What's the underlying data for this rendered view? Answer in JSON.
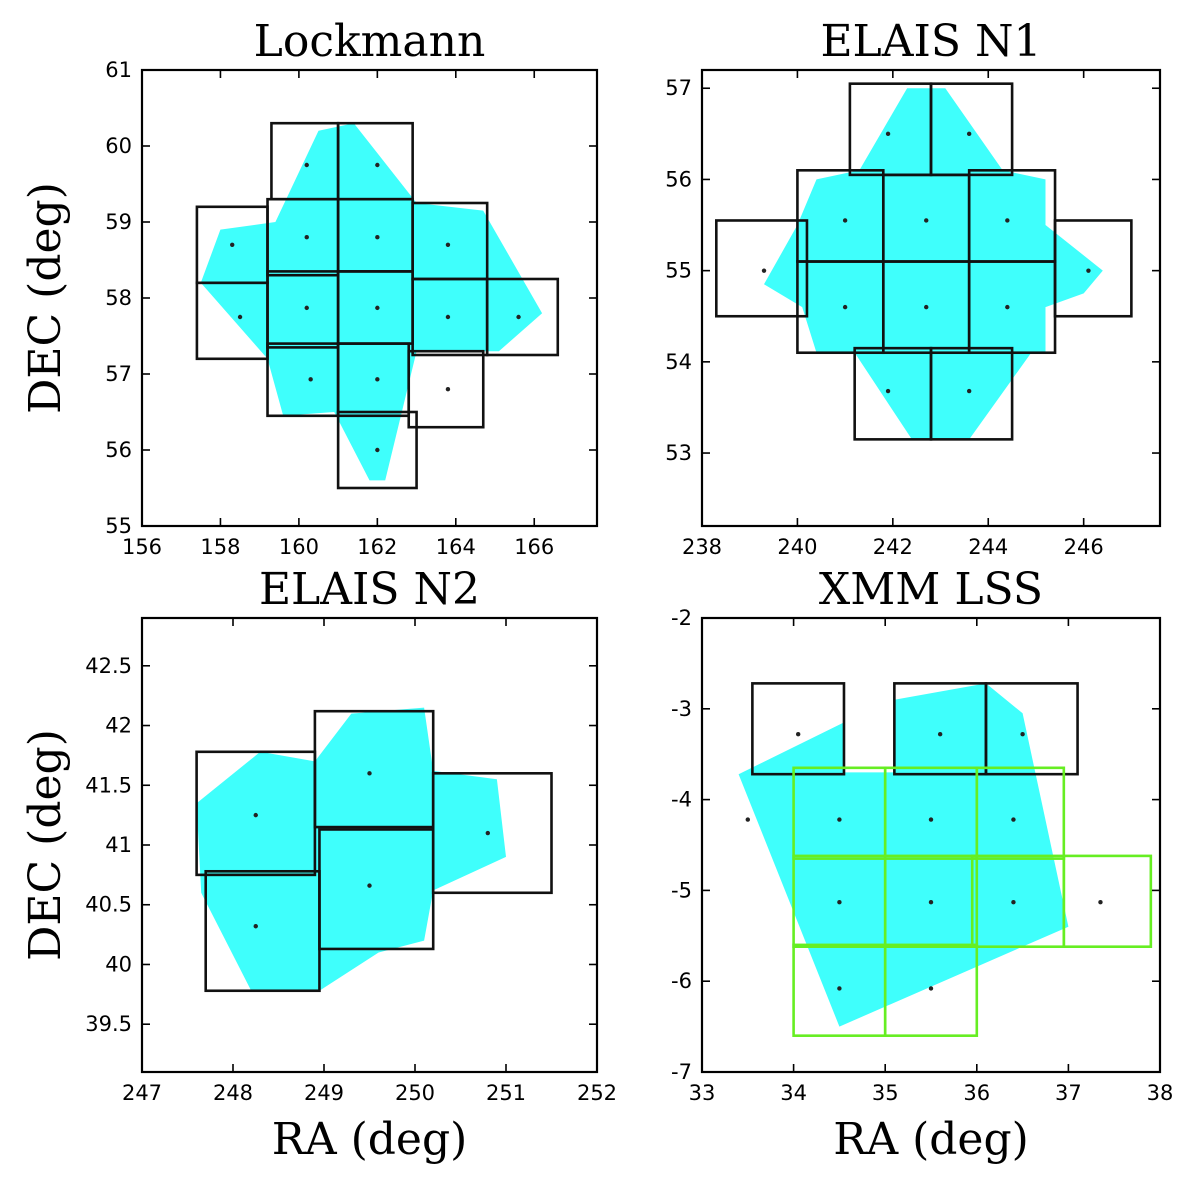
{
  "colors": {
    "coverage": "#3ffffc",
    "box": "#111111",
    "box_alt": "#66ee22",
    "dot": "#222222",
    "frame": "#000000"
  },
  "chart_data": [
    {
      "type": "scatter",
      "title": "Lockmann",
      "xlabel": "",
      "ylabel": "DEC (deg)",
      "xlim": [
        156,
        167.6
      ],
      "ylim": [
        55,
        61
      ],
      "xticks": [
        156,
        158,
        160,
        162,
        164,
        166
      ],
      "yticks": [
        55,
        56,
        57,
        58,
        59,
        60,
        61
      ],
      "coverage_polygon": [
        [
          161.4,
          60.3
        ],
        [
          163.0,
          59.25
        ],
        [
          164.7,
          59.15
        ],
        [
          166.2,
          57.8
        ],
        [
          165.1,
          57.3
        ],
        [
          163.0,
          57.3
        ],
        [
          162.2,
          55.6
        ],
        [
          161.8,
          55.6
        ],
        [
          160.9,
          56.5
        ],
        [
          159.6,
          56.45
        ],
        [
          159.2,
          57.2
        ],
        [
          157.5,
          58.2
        ],
        [
          158.0,
          58.9
        ],
        [
          159.4,
          59.0
        ],
        [
          160.5,
          60.2
        ]
      ],
      "boxes": [
        {
          "ra": [
            159.3,
            161.0
          ],
          "dec": [
            59.3,
            60.3
          ],
          "color": "box"
        },
        {
          "ra": [
            161.0,
            162.9
          ],
          "dec": [
            59.3,
            60.3
          ],
          "color": "box"
        },
        {
          "ra": [
            157.4,
            159.2
          ],
          "dec": [
            58.2,
            59.2
          ],
          "color": "box"
        },
        {
          "ra": [
            159.2,
            161.0
          ],
          "dec": [
            58.3,
            59.3
          ],
          "color": "box"
        },
        {
          "ra": [
            161.0,
            162.9
          ],
          "dec": [
            58.35,
            59.3
          ],
          "color": "box"
        },
        {
          "ra": [
            162.9,
            164.8
          ],
          "dec": [
            58.25,
            59.25
          ],
          "color": "box"
        },
        {
          "ra": [
            157.4,
            159.2
          ],
          "dec": [
            57.2,
            58.2
          ],
          "color": "box"
        },
        {
          "ra": [
            159.2,
            161.0
          ],
          "dec": [
            57.35,
            58.35
          ],
          "color": "box"
        },
        {
          "ra": [
            161.0,
            162.9
          ],
          "dec": [
            57.4,
            58.35
          ],
          "color": "box"
        },
        {
          "ra": [
            162.9,
            164.8
          ],
          "dec": [
            57.25,
            58.25
          ],
          "color": "box"
        },
        {
          "ra": [
            164.8,
            166.6
          ],
          "dec": [
            57.25,
            58.25
          ],
          "color": "box"
        },
        {
          "ra": [
            159.2,
            161.0
          ],
          "dec": [
            56.45,
            57.4
          ],
          "color": "box"
        },
        {
          "ra": [
            161.0,
            162.8
          ],
          "dec": [
            56.45,
            57.4
          ],
          "color": "box"
        },
        {
          "ra": [
            162.8,
            164.7
          ],
          "dec": [
            56.3,
            57.3
          ],
          "color": "box"
        },
        {
          "ra": [
            161.0,
            163.0
          ],
          "dec": [
            55.5,
            56.5
          ],
          "color": "box"
        }
      ],
      "centers": [
        [
          160.2,
          59.75
        ],
        [
          162.0,
          59.75
        ],
        [
          158.3,
          58.7
        ],
        [
          160.2,
          58.8
        ],
        [
          162.0,
          58.8
        ],
        [
          163.8,
          58.7
        ],
        [
          158.5,
          57.75
        ],
        [
          160.2,
          57.87
        ],
        [
          162.0,
          57.87
        ],
        [
          163.8,
          57.75
        ],
        [
          165.6,
          57.75
        ],
        [
          160.3,
          56.93
        ],
        [
          162.0,
          56.93
        ],
        [
          163.8,
          56.8
        ],
        [
          162.0,
          56.0
        ]
      ]
    },
    {
      "type": "scatter",
      "title": "ELAIS N1",
      "xlabel": "",
      "ylabel": "",
      "xlim": [
        238,
        247.6
      ],
      "ylim": [
        52.2,
        57.2
      ],
      "xticks": [
        238,
        240,
        242,
        244,
        246
      ],
      "yticks": [
        53,
        54,
        55,
        56,
        57
      ],
      "coverage_polygon": [
        [
          243.1,
          57.0
        ],
        [
          244.3,
          56.1
        ],
        [
          245.2,
          56.0
        ],
        [
          245.2,
          55.5
        ],
        [
          246.4,
          55.0
        ],
        [
          246.0,
          54.75
        ],
        [
          245.2,
          54.6
        ],
        [
          245.2,
          54.1
        ],
        [
          244.9,
          54.1
        ],
        [
          243.6,
          53.15
        ],
        [
          242.4,
          53.15
        ],
        [
          241.2,
          54.1
        ],
        [
          240.4,
          54.1
        ],
        [
          240.1,
          54.6
        ],
        [
          239.3,
          54.85
        ],
        [
          240.0,
          55.5
        ],
        [
          240.4,
          56.0
        ],
        [
          241.3,
          56.1
        ],
        [
          242.3,
          57.0
        ]
      ],
      "boxes": [
        {
          "ra": [
            241.1,
            242.8
          ],
          "dec": [
            56.05,
            57.05
          ],
          "color": "box"
        },
        {
          "ra": [
            242.8,
            244.5
          ],
          "dec": [
            56.05,
            57.05
          ],
          "color": "box"
        },
        {
          "ra": [
            238.3,
            240.2
          ],
          "dec": [
            54.5,
            55.55
          ],
          "color": "box"
        },
        {
          "ra": [
            240.0,
            241.8
          ],
          "dec": [
            55.1,
            56.1
          ],
          "color": "box"
        },
        {
          "ra": [
            241.8,
            243.6
          ],
          "dec": [
            55.1,
            56.05
          ],
          "color": "box"
        },
        {
          "ra": [
            243.6,
            245.4
          ],
          "dec": [
            55.1,
            56.1
          ],
          "color": "box"
        },
        {
          "ra": [
            245.4,
            247.0
          ],
          "dec": [
            54.5,
            55.55
          ],
          "color": "box"
        },
        {
          "ra": [
            240.0,
            241.8
          ],
          "dec": [
            54.1,
            55.1
          ],
          "color": "box"
        },
        {
          "ra": [
            241.8,
            243.6
          ],
          "dec": [
            54.1,
            55.1
          ],
          "color": "box"
        },
        {
          "ra": [
            243.6,
            245.4
          ],
          "dec": [
            54.1,
            55.1
          ],
          "color": "box"
        },
        {
          "ra": [
            241.2,
            242.8
          ],
          "dec": [
            53.15,
            54.15
          ],
          "color": "box"
        },
        {
          "ra": [
            242.8,
            244.5
          ],
          "dec": [
            53.15,
            54.15
          ],
          "color": "box"
        }
      ],
      "centers": [
        [
          241.9,
          56.5
        ],
        [
          243.6,
          56.5
        ],
        [
          239.3,
          55.0
        ],
        [
          241.0,
          55.55
        ],
        [
          242.7,
          55.55
        ],
        [
          244.4,
          55.55
        ],
        [
          246.1,
          55.0
        ],
        [
          241.0,
          54.6
        ],
        [
          242.7,
          54.6
        ],
        [
          244.4,
          54.6
        ],
        [
          241.9,
          53.68
        ],
        [
          243.6,
          53.68
        ]
      ]
    },
    {
      "type": "scatter",
      "title": "ELAIS N2",
      "xlabel": "RA (deg)",
      "ylabel": "DEC (deg)",
      "xlim": [
        247,
        252
      ],
      "ylim": [
        39.1,
        42.9
      ],
      "xticks": [
        247,
        248,
        249,
        250,
        251,
        252
      ],
      "yticks": [
        39.5,
        40.0,
        40.5,
        41.0,
        41.5,
        42.0,
        42.5
      ],
      "coverage_polygon": [
        [
          250.1,
          42.15
        ],
        [
          250.2,
          41.62
        ],
        [
          250.9,
          41.55
        ],
        [
          251.0,
          40.9
        ],
        [
          250.2,
          40.62
        ],
        [
          250.1,
          40.2
        ],
        [
          249.6,
          40.1
        ],
        [
          248.95,
          39.78
        ],
        [
          248.2,
          39.78
        ],
        [
          247.65,
          40.6
        ],
        [
          247.6,
          41.35
        ],
        [
          248.3,
          41.78
        ],
        [
          248.9,
          41.7
        ],
        [
          249.3,
          42.1
        ]
      ],
      "boxes": [
        {
          "ra": [
            247.6,
            248.9
          ],
          "dec": [
            40.75,
            41.78
          ],
          "color": "box"
        },
        {
          "ra": [
            248.9,
            250.2
          ],
          "dec": [
            41.15,
            42.12
          ],
          "color": "box"
        },
        {
          "ra": [
            250.2,
            251.5
          ],
          "dec": [
            40.6,
            41.6
          ],
          "color": "box"
        },
        {
          "ra": [
            247.7,
            248.95
          ],
          "dec": [
            39.78,
            40.78
          ],
          "color": "box"
        },
        {
          "ra": [
            248.95,
            250.2
          ],
          "dec": [
            40.13,
            41.13
          ],
          "color": "box"
        }
      ],
      "centers": [
        [
          248.25,
          41.25
        ],
        [
          249.5,
          41.6
        ],
        [
          250.8,
          41.1
        ],
        [
          248.25,
          40.32
        ],
        [
          249.5,
          40.66
        ]
      ]
    },
    {
      "type": "scatter",
      "title": "XMM LSS",
      "xlabel": "RA (deg)",
      "ylabel": "",
      "xlim": [
        33,
        38
      ],
      "ylim": [
        -7,
        -2
      ],
      "xticks": [
        33,
        34,
        35,
        36,
        37,
        38
      ],
      "yticks": [
        -7,
        -6,
        -5,
        -4,
        -3,
        -2
      ],
      "coverage_polygon": [
        [
          36.1,
          -2.72
        ],
        [
          36.5,
          -3.05
        ],
        [
          37.0,
          -5.4
        ],
        [
          34.5,
          -6.5
        ],
        [
          33.4,
          -3.72
        ],
        [
          34.55,
          -3.15
        ],
        [
          34.55,
          -3.7
        ],
        [
          35.1,
          -3.7
        ],
        [
          35.1,
          -2.9
        ]
      ],
      "boxes": [
        {
          "ra": [
            33.55,
            34.55
          ],
          "dec": [
            -3.72,
            -2.72
          ],
          "color": "box"
        },
        {
          "ra": [
            35.1,
            36.1
          ],
          "dec": [
            -3.72,
            -2.72
          ],
          "color": "box"
        },
        {
          "ra": [
            36.1,
            37.1
          ],
          "dec": [
            -3.72,
            -2.72
          ],
          "color": "box"
        },
        {
          "ra": [
            34.0,
            35.0
          ],
          "dec": [
            -4.65,
            -3.65
          ],
          "color": "box_alt"
        },
        {
          "ra": [
            35.0,
            36.0
          ],
          "dec": [
            -4.65,
            -3.65
          ],
          "color": "box_alt"
        },
        {
          "ra": [
            36.0,
            36.95
          ],
          "dec": [
            -4.65,
            -3.65
          ],
          "color": "box_alt"
        },
        {
          "ra": [
            34.0,
            35.0
          ],
          "dec": [
            -5.62,
            -4.62
          ],
          "color": "box_alt"
        },
        {
          "ra": [
            35.0,
            36.0
          ],
          "dec": [
            -5.62,
            -4.62
          ],
          "color": "box_alt"
        },
        {
          "ra": [
            35.95,
            36.95
          ],
          "dec": [
            -5.62,
            -4.62
          ],
          "color": "box_alt"
        },
        {
          "ra": [
            36.95,
            37.9
          ],
          "dec": [
            -5.62,
            -4.62
          ],
          "color": "box_alt"
        },
        {
          "ra": [
            34.0,
            35.0
          ],
          "dec": [
            -6.6,
            -5.6
          ],
          "color": "box_alt"
        },
        {
          "ra": [
            35.0,
            36.0
          ],
          "dec": [
            -6.6,
            -5.6
          ],
          "color": "box_alt"
        }
      ],
      "centers": [
        [
          34.05,
          -3.28
        ],
        [
          35.6,
          -3.28
        ],
        [
          36.5,
          -3.28
        ],
        [
          34.5,
          -4.22
        ],
        [
          35.5,
          -4.22
        ],
        [
          36.4,
          -4.22
        ],
        [
          34.5,
          -5.13
        ],
        [
          35.5,
          -5.13
        ],
        [
          36.4,
          -5.13
        ],
        [
          37.35,
          -5.13
        ],
        [
          34.5,
          -6.08
        ],
        [
          35.5,
          -6.08
        ],
        [
          33.5,
          -4.22
        ]
      ]
    }
  ]
}
